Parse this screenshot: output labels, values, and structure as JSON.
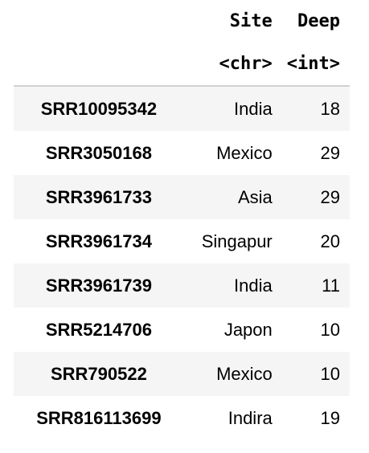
{
  "table": {
    "columns": [
      {
        "name": "Site",
        "type": "<chr>"
      },
      {
        "name": "Deep",
        "type": "<int>"
      }
    ],
    "rows": [
      {
        "id": "SRR10095342",
        "site": "India",
        "deep": "18"
      },
      {
        "id": "SRR3050168",
        "site": "Mexico",
        "deep": "29"
      },
      {
        "id": "SRR3961733",
        "site": "Asia",
        "deep": "29"
      },
      {
        "id": "SRR3961734",
        "site": "Singapur",
        "deep": "20"
      },
      {
        "id": "SRR3961739",
        "site": "India",
        "deep": "11"
      },
      {
        "id": "SRR5214706",
        "site": "Japon",
        "deep": "10"
      },
      {
        "id": "SRR790522",
        "site": "Mexico",
        "deep": "10"
      },
      {
        "id": "SRR816113699",
        "site": "Indira",
        "deep": "19"
      }
    ]
  }
}
